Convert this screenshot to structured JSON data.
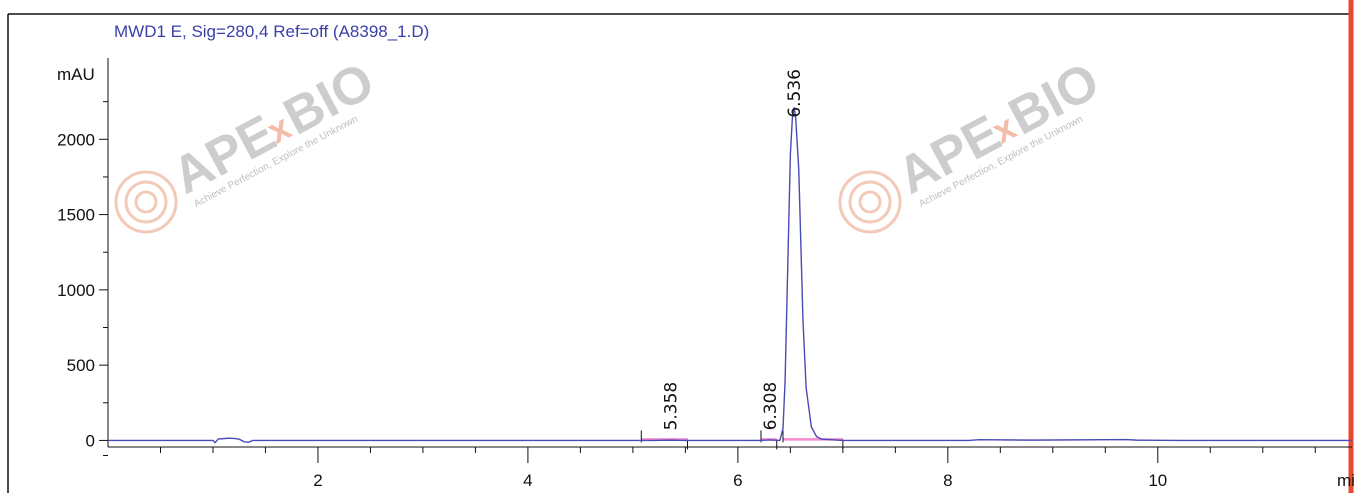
{
  "chart_data": {
    "type": "line",
    "title": "MWD1 E, Sig=280,4 Ref=off (A8398_1.D)",
    "ylabel": "mAU",
    "xlabel_truncated": "mi",
    "xlim": [
      0.0,
      11.85
    ],
    "ylim": [
      -130,
      2540
    ],
    "xticks": [
      2,
      4,
      6,
      8,
      10
    ],
    "xtick_labels": [
      "2",
      "4",
      "6",
      "8",
      "10"
    ],
    "yticks": [
      0,
      500,
      1000,
      1500,
      2000
    ],
    "ytick_labels": [
      "0",
      "500",
      "1000",
      "1500",
      "2000"
    ],
    "grid": false,
    "series": [
      {
        "x": [
          0.0,
          1.0,
          1.02,
          1.05,
          1.1,
          1.15,
          1.2,
          1.25,
          1.3,
          1.34,
          1.38,
          1.5,
          5.2,
          5.358,
          5.5,
          6.2,
          6.308,
          6.4,
          6.43,
          6.45,
          6.48,
          6.5,
          6.52,
          6.536,
          6.55,
          6.58,
          6.6,
          6.62,
          6.65,
          6.7,
          6.75,
          6.8,
          7.0,
          8.2,
          8.3,
          8.8,
          9.7,
          9.8,
          10.2,
          11.85
        ],
        "y": [
          0,
          0,
          -15,
          10,
          12,
          15,
          13,
          8,
          -10,
          -12,
          0,
          0,
          0,
          2,
          0,
          0,
          3,
          0,
          80,
          400,
          1300,
          1900,
          2150,
          2210,
          2150,
          1800,
          1300,
          800,
          350,
          90,
          25,
          8,
          0,
          0,
          5,
          2,
          6,
          2,
          0,
          0
        ]
      }
    ],
    "peaks": [
      {
        "label": "5.358",
        "x": 5.358
      },
      {
        "label": "6.308",
        "x": 6.308
      },
      {
        "label": "6.536",
        "x": 6.536
      }
    ],
    "integration_baselines": [
      {
        "x_start": 5.08,
        "x_end": 5.52
      },
      {
        "x_start": 6.22,
        "x_end": 6.37
      },
      {
        "x_start": 6.43,
        "x_end": 7.0
      }
    ],
    "colors": {
      "trace": "#4a4ab8",
      "baseline": "#f58ccf",
      "title": "#3b3fa8",
      "right_edge": "#e8482e"
    }
  },
  "watermark": {
    "brand_left": "APE",
    "brand_x": "x",
    "brand_right": "BIO",
    "tagline": "Achieve Perfection, Explore the Unknown"
  }
}
